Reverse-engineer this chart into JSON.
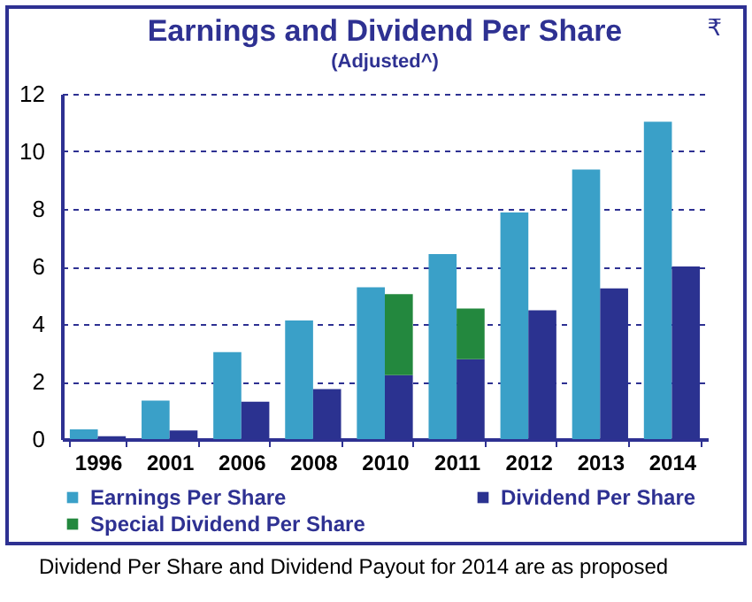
{
  "chart_data": {
    "type": "bar",
    "title": "Earnings and Dividend Per Share",
    "subtitle": "(Adjusted^)",
    "categories": [
      "1996",
      "2001",
      "2006",
      "2008",
      "2010",
      "2011",
      "2012",
      "2013",
      "2014"
    ],
    "series": [
      {
        "name": "Earnings Per Share",
        "color": "#3aa0c8",
        "values": [
          0.34,
          1.34,
          3.02,
          4.12,
          5.28,
          6.43,
          7.88,
          9.37,
          11.03
        ]
      },
      {
        "name": "Dividend Per Share",
        "color": "#2b3290",
        "values": [
          0.1,
          0.3,
          1.3,
          1.74,
          2.22,
          2.78,
          4.48,
          5.24,
          6.0
        ]
      },
      {
        "name": "Special Dividend Per Share",
        "color": "#23883e",
        "values": [
          null,
          null,
          null,
          null,
          2.82,
          1.76,
          null,
          null,
          null
        ],
        "base": [
          null,
          null,
          null,
          null,
          2.22,
          2.78,
          null,
          null,
          null
        ]
      }
    ],
    "ylim": [
      0,
      12
    ],
    "yticks": [
      0,
      2,
      4,
      6,
      8,
      10,
      12
    ],
    "grid": "y",
    "legend": "bottom",
    "annotations": [
      "₹",
      "Dividend Per Share and Dividend Payout for 2014 are as proposed"
    ]
  }
}
